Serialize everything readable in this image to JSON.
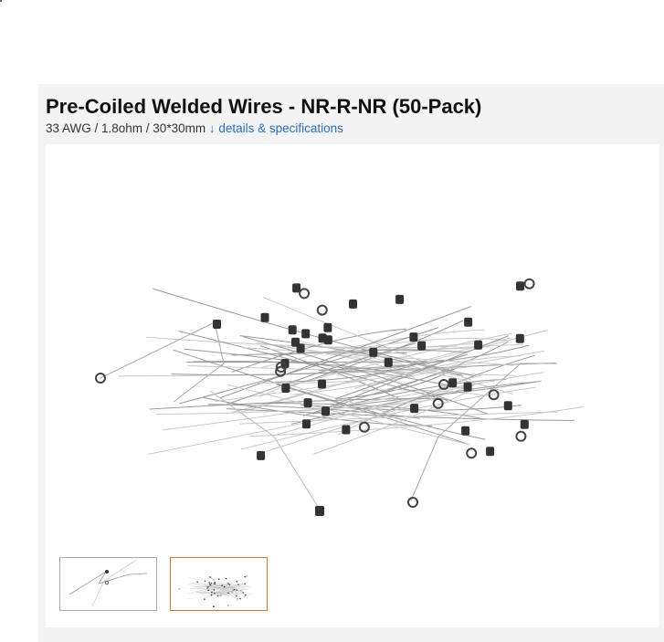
{
  "product": {
    "title": "Pre-Coiled Welded Wires - NR-R-NR (50-Pack)",
    "specs": "33 AWG / 1.8ohm / 30*30mm",
    "details_arrow": "↓",
    "details_link": "details & specifications"
  },
  "gallery": {
    "main_image": "wire-coils-image",
    "thumbnails": [
      {
        "name": "single-wire-thumbnail",
        "selected": false
      },
      {
        "name": "wire-pile-thumbnail",
        "selected": true
      }
    ]
  },
  "colors": {
    "link": "#2a6ebb",
    "thumb_selected": "#d07a35",
    "panel": "#f3f3f3"
  }
}
